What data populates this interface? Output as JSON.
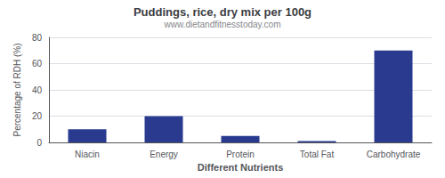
{
  "chart_data": {
    "type": "bar",
    "title": "Puddings, rice, dry mix per 100g",
    "subtitle": "www.dietandfitnesstoday.com",
    "xlabel": "Different Nutrients",
    "ylabel": "Percentage of RDH (%)",
    "categories": [
      "Niacin",
      "Energy",
      "Protein",
      "Total Fat",
      "Carbohydrate"
    ],
    "values": [
      10,
      20,
      5,
      1,
      70
    ],
    "color": "#2a3b8f",
    "ylim": [
      0,
      80
    ],
    "yticks": [
      0,
      20,
      40,
      60,
      80
    ],
    "grid": true
  }
}
